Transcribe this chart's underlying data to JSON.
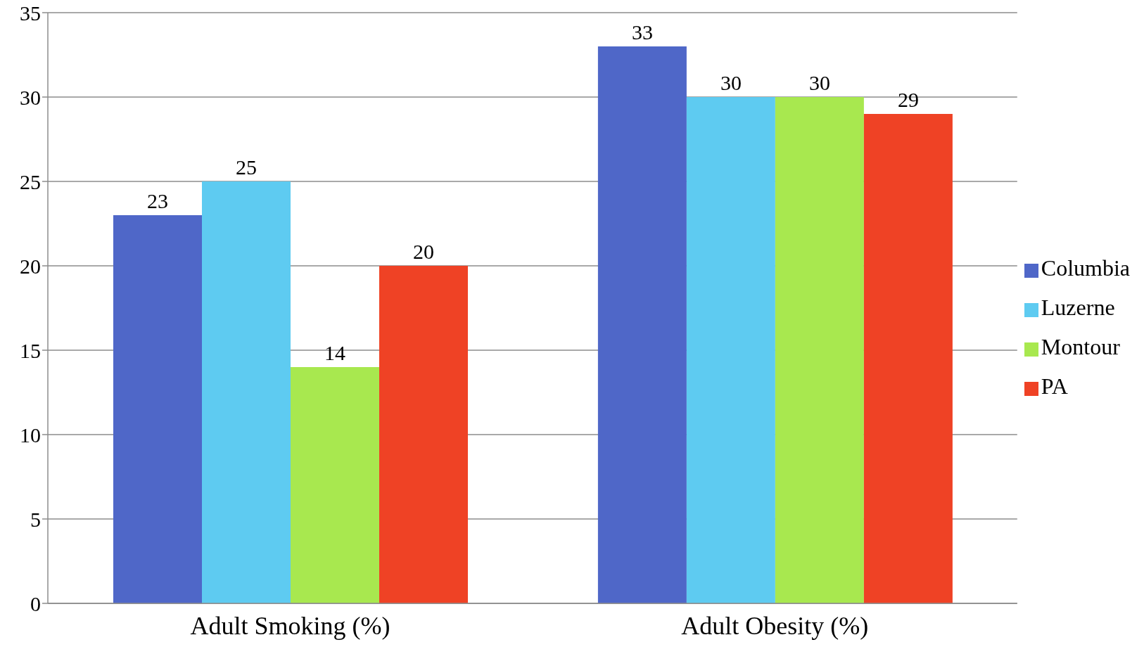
{
  "chart_data": {
    "type": "bar",
    "categories": [
      "Adult Smoking (%)",
      "Adult Obesity (%)"
    ],
    "series": [
      {
        "name": "Columbia",
        "color": "#4f67c8",
        "values": [
          23,
          33
        ]
      },
      {
        "name": "Luzerne",
        "color": "#5ecbf1",
        "values": [
          25,
          30
        ]
      },
      {
        "name": "Montour",
        "color": "#a8e84f",
        "values": [
          14,
          30
        ]
      },
      {
        "name": "PA",
        "color": "#ef4225",
        "values": [
          20,
          29
        ]
      }
    ],
    "ylim": [
      0,
      35
    ],
    "yticks": [
      0,
      5,
      10,
      15,
      20,
      25,
      30,
      35
    ],
    "grid": "y",
    "legend": "right",
    "data_labels": true
  }
}
